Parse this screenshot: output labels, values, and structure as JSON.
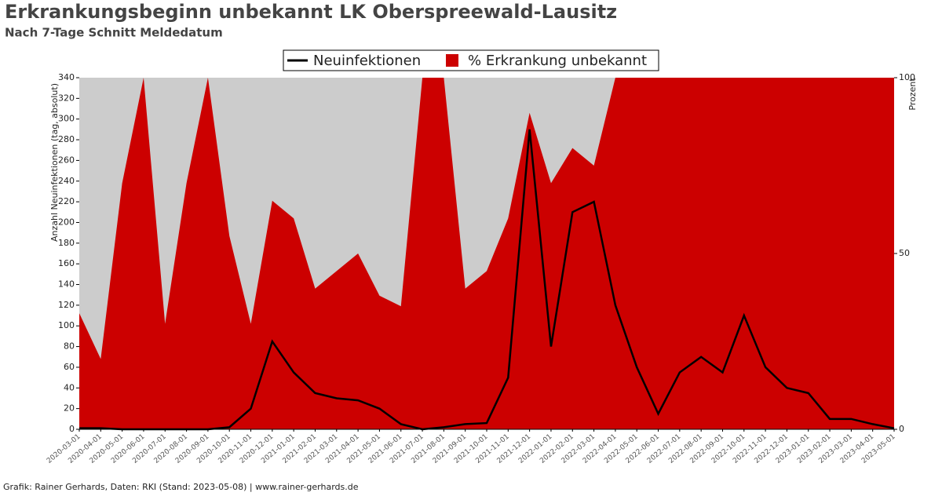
{
  "chart_data": {
    "type": "line",
    "title": "Erkrankungsbeginn unbekannt LK Oberspreewald-Lausitz",
    "subtitle": "Nach 7-Tage Schnitt Meldedatum",
    "footer": "Grafik: Rainer Gerhards, Daten: RKI (Stand: 2023-05-08) | www.rainer-gerhards.de",
    "y_label": "Anzahl Neuinfektionen (tag, absolut)",
    "y2_label": "Prozent",
    "x": [
      "2020-03-01",
      "2020-04-01",
      "2020-05-01",
      "2020-06-01",
      "2020-07-01",
      "2020-08-01",
      "2020-09-01",
      "2020-10-01",
      "2020-11-01",
      "2020-12-01",
      "2021-01-01",
      "2021-02-01",
      "2021-03-01",
      "2021-04-01",
      "2021-05-01",
      "2021-06-01",
      "2021-07-01",
      "2021-08-01",
      "2021-09-01",
      "2021-10-01",
      "2021-11-01",
      "2021-12-01",
      "2022-01-01",
      "2022-02-01",
      "2022-03-01",
      "2022-04-01",
      "2022-05-01",
      "2022-06-01",
      "2022-07-01",
      "2022-08-01",
      "2022-09-01",
      "2022-10-01",
      "2022-11-01",
      "2022-12-01",
      "2023-01-01",
      "2023-02-01",
      "2023-03-01",
      "2023-04-01",
      "2023-05-01"
    ],
    "series": [
      {
        "name": "% Erkrankung unbekannt",
        "color": "#cc0000",
        "mark": "area",
        "axis": "y2",
        "values": [
          33,
          20,
          70,
          100,
          30,
          70,
          100,
          55,
          30,
          65,
          60,
          40,
          45,
          50,
          38,
          35,
          100,
          100,
          40,
          45,
          60,
          90,
          70,
          80,
          75,
          100,
          100,
          100,
          100,
          100,
          100,
          100,
          100,
          100,
          100,
          100,
          100,
          100,
          100
        ]
      },
      {
        "name": "Neuinfektionen",
        "color": "#000000",
        "mark": "line",
        "values": [
          1,
          1,
          0,
          0,
          0,
          0,
          0,
          2,
          20,
          85,
          55,
          35,
          30,
          28,
          20,
          5,
          0,
          2,
          5,
          6,
          50,
          290,
          80,
          210,
          220,
          120,
          60,
          15,
          55,
          70,
          55,
          110,
          60,
          40,
          35,
          10,
          10,
          5,
          1
        ]
      }
    ],
    "ylim": [
      0,
      340
    ],
    "yticks": [
      0,
      20,
      40,
      60,
      80,
      100,
      120,
      140,
      160,
      180,
      200,
      220,
      240,
      260,
      280,
      300,
      320,
      340
    ],
    "y2lim": [
      0,
      100
    ],
    "y2ticks": [
      0,
      50,
      100
    ],
    "background": "#cccccc",
    "legend": "top"
  }
}
